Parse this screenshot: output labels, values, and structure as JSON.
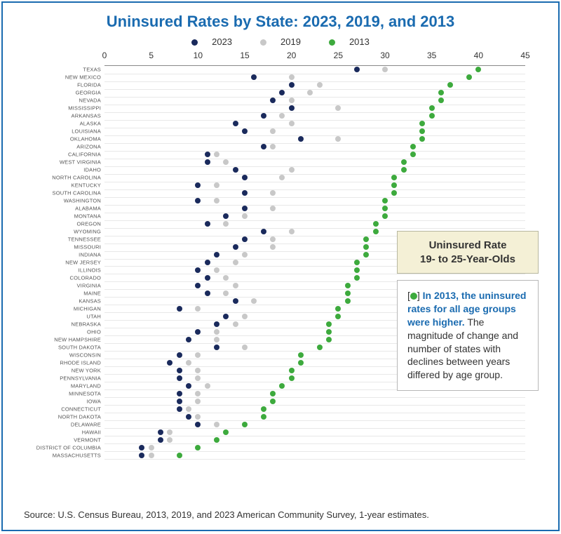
{
  "title": "Uninsured Rates by State: 2023, 2019, and 2013",
  "title_color": "#1a6bb0",
  "title_fontsize": 22,
  "legend": [
    {
      "label": "2023",
      "color": "#1a2a5c"
    },
    {
      "label": "2019",
      "color": "#c8c8c8"
    },
    {
      "label": "2013",
      "color": "#3daa3d"
    }
  ],
  "chart": {
    "type": "dot-plot",
    "xlim": [
      0,
      45
    ],
    "xtick_step": 5,
    "xticks": [
      0,
      5,
      10,
      15,
      20,
      25,
      30,
      35,
      40,
      45
    ],
    "background_color": "#ffffff",
    "grid_color": "#e8e8e8",
    "axis_color": "#888888",
    "dot_radius": 4,
    "series_colors": {
      "y2023": "#1a2a5c",
      "y2019": "#c8c8c8",
      "y2013": "#3daa3d"
    },
    "states": [
      {
        "name": "TEXAS",
        "y2023": 27.0,
        "y2019": 30.0,
        "y2013": 40.0
      },
      {
        "name": "NEW MEXICO",
        "y2023": 16.0,
        "y2019": 20.0,
        "y2013": 39.0
      },
      {
        "name": "FLORIDA",
        "y2023": 20.0,
        "y2019": 23.0,
        "y2013": 37.0
      },
      {
        "name": "GEORGIA",
        "y2023": 19.0,
        "y2019": 22.0,
        "y2013": 36.0
      },
      {
        "name": "NEVADA",
        "y2023": 18.0,
        "y2019": 20.0,
        "y2013": 36.0
      },
      {
        "name": "MISSISSIPPI",
        "y2023": 20.0,
        "y2019": 25.0,
        "y2013": 35.0
      },
      {
        "name": "ARKANSAS",
        "y2023": 17.0,
        "y2019": 19.0,
        "y2013": 35.0
      },
      {
        "name": "ALASKA",
        "y2023": 14.0,
        "y2019": 20.0,
        "y2013": 34.0
      },
      {
        "name": "LOUISIANA",
        "y2023": 15.0,
        "y2019": 18.0,
        "y2013": 34.0
      },
      {
        "name": "OKLAHOMA",
        "y2023": 21.0,
        "y2019": 25.0,
        "y2013": 34.0
      },
      {
        "name": "ARIZONA",
        "y2023": 17.0,
        "y2019": 18.0,
        "y2013": 33.0
      },
      {
        "name": "CALIFORNIA",
        "y2023": 11.0,
        "y2019": 12.0,
        "y2013": 33.0
      },
      {
        "name": "WEST VIRGINIA",
        "y2023": 11.0,
        "y2019": 13.0,
        "y2013": 32.0
      },
      {
        "name": "IDAHO",
        "y2023": 14.0,
        "y2019": 20.0,
        "y2013": 32.0
      },
      {
        "name": "NORTH CAROLINA",
        "y2023": 15.0,
        "y2019": 19.0,
        "y2013": 31.0
      },
      {
        "name": "KENTUCKY",
        "y2023": 10.0,
        "y2019": 12.0,
        "y2013": 31.0
      },
      {
        "name": "SOUTH CAROLINA",
        "y2023": 15.0,
        "y2019": 18.0,
        "y2013": 31.0
      },
      {
        "name": "WASHINGTON",
        "y2023": 10.0,
        "y2019": 12.0,
        "y2013": 30.0
      },
      {
        "name": "ALABAMA",
        "y2023": 15.0,
        "y2019": 18.0,
        "y2013": 30.0
      },
      {
        "name": "MONTANA",
        "y2023": 13.0,
        "y2019": 15.0,
        "y2013": 30.0
      },
      {
        "name": "OREGON",
        "y2023": 11.0,
        "y2019": 13.0,
        "y2013": 29.0
      },
      {
        "name": "WYOMING",
        "y2023": 17.0,
        "y2019": 20.0,
        "y2013": 29.0
      },
      {
        "name": "TENNESSEE",
        "y2023": 15.0,
        "y2019": 18.0,
        "y2013": 28.0
      },
      {
        "name": "MISSOURI",
        "y2023": 14.0,
        "y2019": 18.0,
        "y2013": 28.0
      },
      {
        "name": "INDIANA",
        "y2023": 12.0,
        "y2019": 15.0,
        "y2013": 28.0
      },
      {
        "name": "NEW JERSEY",
        "y2023": 11.0,
        "y2019": 14.0,
        "y2013": 27.0
      },
      {
        "name": "ILLINOIS",
        "y2023": 10.0,
        "y2019": 12.0,
        "y2013": 27.0
      },
      {
        "name": "COLORADO",
        "y2023": 11.0,
        "y2019": 13.0,
        "y2013": 27.0
      },
      {
        "name": "VIRGINIA",
        "y2023": 10.0,
        "y2019": 14.0,
        "y2013": 26.0
      },
      {
        "name": "MAINE",
        "y2023": 11.0,
        "y2019": 13.0,
        "y2013": 26.0
      },
      {
        "name": "KANSAS",
        "y2023": 14.0,
        "y2019": 16.0,
        "y2013": 26.0
      },
      {
        "name": "MICHIGAN",
        "y2023": 8.0,
        "y2019": 10.0,
        "y2013": 25.0
      },
      {
        "name": "UTAH",
        "y2023": 13.0,
        "y2019": 15.0,
        "y2013": 25.0
      },
      {
        "name": "NEBRASKA",
        "y2023": 12.0,
        "y2019": 14.0,
        "y2013": 24.0
      },
      {
        "name": "OHIO",
        "y2023": 10.0,
        "y2019": 12.0,
        "y2013": 24.0
      },
      {
        "name": "NEW HAMPSHIRE",
        "y2023": 9.0,
        "y2019": 12.0,
        "y2013": 24.0
      },
      {
        "name": "SOUTH DAKOTA",
        "y2023": 12.0,
        "y2019": 15.0,
        "y2013": 23.0
      },
      {
        "name": "WISCONSIN",
        "y2023": 8.0,
        "y2019": 10.0,
        "y2013": 21.0
      },
      {
        "name": "RHODE ISLAND",
        "y2023": 7.0,
        "y2019": 9.0,
        "y2013": 21.0
      },
      {
        "name": "NEW YORK",
        "y2023": 8.0,
        "y2019": 10.0,
        "y2013": 20.0
      },
      {
        "name": "PENNSYLVANIA",
        "y2023": 8.0,
        "y2019": 10.0,
        "y2013": 20.0
      },
      {
        "name": "MARYLAND",
        "y2023": 9.0,
        "y2019": 11.0,
        "y2013": 19.0
      },
      {
        "name": "MINNESOTA",
        "y2023": 8.0,
        "y2019": 10.0,
        "y2013": 18.0
      },
      {
        "name": "IOWA",
        "y2023": 8.0,
        "y2019": 10.0,
        "y2013": 18.0
      },
      {
        "name": "CONNECTICUT",
        "y2023": 8.0,
        "y2019": 9.0,
        "y2013": 17.0
      },
      {
        "name": "NORTH DAKOTA",
        "y2023": 9.0,
        "y2019": 10.0,
        "y2013": 17.0
      },
      {
        "name": "DELAWARE",
        "y2023": 10.0,
        "y2019": 12.0,
        "y2013": 15.0
      },
      {
        "name": "HAWAII",
        "y2023": 6.0,
        "y2019": 7.0,
        "y2013": 13.0
      },
      {
        "name": "VERMONT",
        "y2023": 6.0,
        "y2019": 7.0,
        "y2013": 12.0
      },
      {
        "name": "DISTRICT OF COLUMBIA",
        "y2023": 4.0,
        "y2019": 5.0,
        "y2013": 10.0
      },
      {
        "name": "MASSACHUSETTS",
        "y2023": 4.0,
        "y2019": 5.0,
        "y2013": 8.0
      }
    ]
  },
  "callout1": {
    "line1": "Uninsured Rate",
    "line2": "19- to 25-Year-Olds",
    "bg": "#f4f0d6",
    "border": "#b8b8a0"
  },
  "callout2": {
    "dot_color": "#3daa3d",
    "lead": "In 2013, the uninsured rates for all age groups were higher.",
    "body": " The magnitude of change and number of states with declines between years differed by age group.",
    "lead_color": "#1a6bb0",
    "border": "#b8b8b8"
  },
  "source": "Source: U.S. Census Bureau, 2013, 2019, and 2023 American Community Survey, 1-year estimates."
}
